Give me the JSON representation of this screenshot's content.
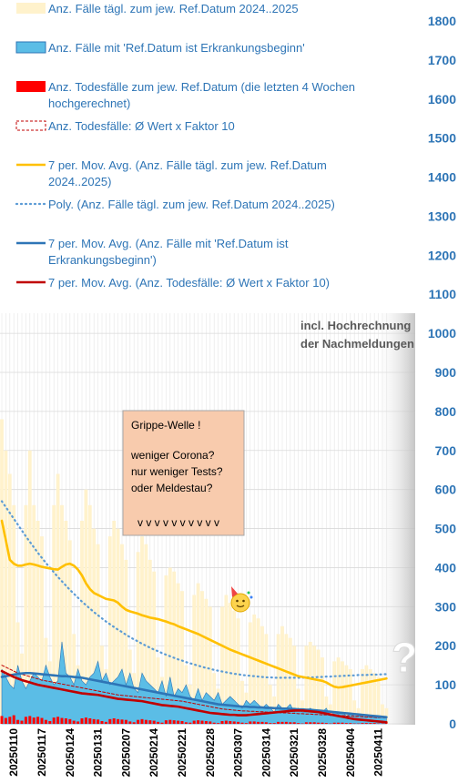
{
  "chart_data": {
    "type": "bar",
    "title": "",
    "xlabel": "",
    "ylabel": "",
    "ylim": [
      0,
      1850
    ],
    "y_ticks": [
      0,
      100,
      200,
      300,
      400,
      500,
      600,
      700,
      800,
      900,
      1000,
      1100,
      1200,
      1300,
      1400,
      1500,
      1600,
      1700,
      1800
    ],
    "x_tick_labels": [
      "20250110",
      "20250117",
      "20250124",
      "20250131",
      "20250207",
      "20250214",
      "20250221",
      "20250228",
      "20250307",
      "20250314",
      "20250321",
      "20250328",
      "20250404",
      "20250411"
    ],
    "legend_position": "top-left",
    "legend": [
      {
        "key": "cases_ref",
        "label": "Anz. Fälle tägl. zum jew. Ref.Datum 2024..2025",
        "style": "bar",
        "color": "#fff2cc"
      },
      {
        "key": "cases_onset",
        "label": "Anz. Fälle mit 'Ref.Datum ist Erkrankungsbeginn'",
        "style": "area",
        "color": "#5bbde6"
      },
      {
        "key": "deaths",
        "label": "Anz. Todesfälle zum jew. Ref.Datum (die letzten 4 Wochen hochgerechnet)",
        "style": "bar",
        "color": "#ff0000"
      },
      {
        "key": "deaths_x10",
        "label": "Anz. Todesfälle: Ø Wert x Faktor 10",
        "style": "dashed-box",
        "color": "#c00000"
      },
      {
        "key": "ma_cases_ref",
        "label": "7 per. Mov. Avg. (Anz. Fälle tägl. zum jew. Ref.Datum 2024..2025)",
        "style": "line",
        "color": "#ffc000"
      },
      {
        "key": "poly_cases_ref",
        "label": "Poly. (Anz. Fälle tägl. zum jew. Ref.Datum 2024..2025)",
        "style": "dotted",
        "color": "#5b9bd5"
      },
      {
        "key": "ma_cases_onset",
        "label": "7 per. Mov. Avg. (Anz. Fälle mit 'Ref.Datum ist Erkrankungsbeginn')",
        "style": "line",
        "color": "#2e75b6"
      },
      {
        "key": "ma_deaths_x10",
        "label": "7 per. Mov. Avg. (Anz. Todesfälle: Ø Wert x Faktor 10)",
        "style": "line",
        "color": "#c00000"
      }
    ],
    "annotations": {
      "projection_note": "incl. Hochrechnung der Nachmeldungen",
      "box_lines": [
        "Grippe-Welle !",
        "",
        "weniger Corona?",
        "nur weniger Tests?",
        "oder Meldestau?",
        "",
        "v v v v v v v v v v"
      ],
      "question_mark": "?"
    },
    "x": [
      "2025-01-07",
      "2025-01-08",
      "2025-01-09",
      "2025-01-10",
      "2025-01-11",
      "2025-01-12",
      "2025-01-13",
      "2025-01-14",
      "2025-01-15",
      "2025-01-16",
      "2025-01-17",
      "2025-01-18",
      "2025-01-19",
      "2025-01-20",
      "2025-01-21",
      "2025-01-22",
      "2025-01-23",
      "2025-01-24",
      "2025-01-25",
      "2025-01-26",
      "2025-01-27",
      "2025-01-28",
      "2025-01-29",
      "2025-01-30",
      "2025-01-31",
      "2025-02-01",
      "2025-02-02",
      "2025-02-03",
      "2025-02-04",
      "2025-02-05",
      "2025-02-06",
      "2025-02-07",
      "2025-02-08",
      "2025-02-09",
      "2025-02-10",
      "2025-02-11",
      "2025-02-12",
      "2025-02-13",
      "2025-02-14",
      "2025-02-15",
      "2025-02-16",
      "2025-02-17",
      "2025-02-18",
      "2025-02-19",
      "2025-02-20",
      "2025-02-21",
      "2025-02-22",
      "2025-02-23",
      "2025-02-24",
      "2025-02-25",
      "2025-02-26",
      "2025-02-27",
      "2025-02-28",
      "2025-03-01",
      "2025-03-02",
      "2025-03-03",
      "2025-03-04",
      "2025-03-05",
      "2025-03-06",
      "2025-03-07",
      "2025-03-08",
      "2025-03-09",
      "2025-03-10",
      "2025-03-11",
      "2025-03-12",
      "2025-03-13",
      "2025-03-14",
      "2025-03-15",
      "2025-03-16",
      "2025-03-17",
      "2025-03-18",
      "2025-03-19",
      "2025-03-20",
      "2025-03-21",
      "2025-03-22",
      "2025-03-23",
      "2025-03-24",
      "2025-03-25",
      "2025-03-26",
      "2025-03-27",
      "2025-03-28",
      "2025-03-29",
      "2025-03-30",
      "2025-03-31",
      "2025-04-01",
      "2025-04-02",
      "2025-04-03",
      "2025-04-04",
      "2025-04-05",
      "2025-04-06",
      "2025-04-07",
      "2025-04-08",
      "2025-04-09",
      "2025-04-10",
      "2025-04-11",
      "2025-04-12",
      "2025-04-13"
    ],
    "series": [
      {
        "key": "cases_ref",
        "values": [
          780,
          700,
          640,
          560,
          260,
          180,
          560,
          700,
          560,
          520,
          480,
          220,
          160,
          560,
          640,
          560,
          520,
          470,
          230,
          150,
          520,
          600,
          560,
          500,
          460,
          200,
          140,
          480,
          520,
          500,
          460,
          420,
          190,
          130,
          440,
          480,
          460,
          420,
          390,
          170,
          120,
          380,
          400,
          390,
          360,
          340,
          150,
          100,
          330,
          360,
          340,
          320,
          300,
          130,
          90,
          300,
          330,
          310,
          290,
          270,
          110,
          80,
          260,
          280,
          270,
          250,
          230,
          100,
          70,
          230,
          250,
          230,
          220,
          200,
          90,
          60,
          200,
          210,
          200,
          190,
          170,
          70,
          50,
          160,
          170,
          160,
          150,
          140,
          60,
          40,
          140,
          150,
          140,
          130,
          120,
          50,
          40
        ]
      },
      {
        "key": "cases_onset",
        "values": [
          140,
          120,
          100,
          90,
          150,
          110,
          90,
          110,
          130,
          120,
          110,
          150,
          120,
          100,
          110,
          210,
          130,
          120,
          100,
          140,
          110,
          100,
          120,
          130,
          160,
          110,
          130,
          100,
          110,
          120,
          140,
          100,
          130,
          90,
          80,
          130,
          110,
          100,
          90,
          80,
          110,
          70,
          120,
          70,
          90,
          80,
          100,
          70,
          60,
          90,
          60,
          80,
          70,
          60,
          80,
          50,
          60,
          70,
          60,
          50,
          40,
          60,
          50,
          60,
          50,
          40,
          50,
          40,
          30,
          50,
          40,
          40,
          50,
          30,
          40,
          30,
          30,
          40,
          30,
          30,
          30,
          40,
          20,
          30,
          25,
          30,
          20,
          25,
          20,
          20,
          20,
          15,
          20,
          15,
          15,
          20,
          15
        ]
      },
      {
        "key": "deaths",
        "values": [
          20,
          15,
          18,
          22,
          10,
          8,
          18,
          20,
          16,
          18,
          15,
          10,
          7,
          16,
          18,
          15,
          14,
          12,
          8,
          6,
          14,
          16,
          14,
          12,
          11,
          7,
          5,
          12,
          14,
          12,
          11,
          10,
          6,
          4,
          10,
          12,
          10,
          9,
          8,
          5,
          3,
          9,
          10,
          9,
          8,
          7,
          4,
          3,
          8,
          9,
          8,
          7,
          6,
          3,
          2,
          7,
          8,
          7,
          6,
          5,
          3,
          2,
          6,
          6,
          5,
          5,
          4,
          2,
          2,
          5,
          5,
          5,
          4,
          4,
          2,
          1,
          4,
          4,
          4,
          3,
          3,
          2,
          1,
          3,
          3,
          3,
          2,
          2,
          1,
          1,
          2,
          2,
          2,
          2,
          1,
          1,
          1
        ]
      },
      {
        "key": "deaths_x10",
        "values": [
          150,
          145,
          140,
          135,
          130,
          127,
          124,
          121,
          118,
          115,
          112,
          110,
          108,
          106,
          104,
          102,
          100,
          98,
          96,
          94,
          92,
          90,
          88,
          86,
          84,
          82,
          80,
          78,
          76,
          74,
          73,
          72,
          71,
          70,
          69,
          68,
          67,
          66,
          65,
          64,
          63,
          62,
          61,
          60,
          59,
          58,
          56,
          54,
          52,
          50,
          48,
          46,
          44,
          42,
          40,
          38,
          37,
          36,
          35,
          34,
          33,
          33,
          32,
          32,
          31,
          31,
          30,
          30,
          29,
          29,
          28,
          28,
          27,
          27,
          26,
          26,
          25,
          25,
          24,
          24,
          23,
          23,
          22,
          22,
          21,
          21,
          20,
          20,
          19,
          19,
          18,
          18,
          17,
          17,
          16,
          16,
          15
        ]
      },
      {
        "key": "ma_cases_ref",
        "values": [
          520,
          470,
          420,
          410,
          405,
          405,
          408,
          410,
          408,
          405,
          402,
          400,
          398,
          396,
          395,
          402,
          408,
          410,
          405,
          395,
          380,
          360,
          345,
          335,
          330,
          325,
          320,
          318,
          316,
          310,
          300,
          292,
          288,
          285,
          282,
          278,
          275,
          272,
          270,
          268,
          265,
          262,
          258,
          255,
          250,
          246,
          242,
          238,
          234,
          230,
          225,
          220,
          215,
          210,
          205,
          200,
          195,
          190,
          186,
          182,
          178,
          174,
          170,
          166,
          162,
          158,
          154,
          150,
          146,
          142,
          138,
          134,
          130,
          126,
          122,
          120,
          118,
          116,
          114,
          112,
          110,
          106,
          100,
          95,
          93,
          94,
          96,
          98,
          100,
          102,
          104,
          106,
          108,
          110,
          112,
          114,
          116
        ]
      },
      {
        "key": "poly_cases_ref",
        "values": [
          570,
          555,
          540,
          525,
          510,
          495,
          480,
          466,
          452,
          438,
          425,
          412,
          400,
          388,
          376,
          365,
          354,
          343,
          333,
          323,
          313,
          304,
          295,
          286,
          278,
          270,
          262,
          255,
          248,
          241,
          235,
          228,
          222,
          216,
          211,
          205,
          200,
          195,
          190,
          186,
          181,
          177,
          173,
          169,
          165,
          162,
          158,
          155,
          152,
          149,
          146,
          143,
          141,
          138,
          136,
          134,
          132,
          130,
          128,
          127,
          125,
          124,
          123,
          122,
          121,
          120,
          119,
          119,
          118,
          118,
          118,
          118,
          118,
          118,
          118,
          118,
          119,
          119,
          119,
          120,
          120,
          121,
          121,
          122,
          122,
          123,
          123,
          124,
          124,
          125,
          125,
          125,
          126,
          126,
          126,
          127,
          127
        ]
      },
      {
        "key": "ma_cases_onset",
        "values": [
          120,
          122,
          124,
          126,
          128,
          129,
          130,
          130,
          129,
          128,
          127,
          126,
          125,
          124,
          123,
          122,
          122,
          121,
          120,
          119,
          118,
          116,
          114,
          112,
          110,
          108,
          106,
          104,
          102,
          100,
          98,
          96,
          94,
          92,
          90,
          88,
          86,
          84,
          82,
          80,
          78,
          76,
          74,
          72,
          70,
          68,
          66,
          64,
          62,
          60,
          58,
          56,
          54,
          52,
          50,
          49,
          48,
          47,
          46,
          45,
          44,
          44,
          43,
          43,
          42,
          42,
          41,
          41,
          40,
          40,
          39,
          39,
          38,
          38,
          37,
          37,
          36,
          36,
          35,
          34,
          33,
          32,
          31,
          30,
          29,
          28,
          27,
          26,
          25,
          24,
          23,
          22,
          21,
          20,
          19,
          18,
          17
        ]
      },
      {
        "key": "ma_deaths_x10",
        "values": [
          135,
          130,
          125,
          120,
          116,
          112,
          109,
          106,
          103,
          100,
          98,
          96,
          94,
          92,
          90,
          88,
          86,
          84,
          82,
          80,
          78,
          77,
          76,
          75,
          74,
          72,
          70,
          68,
          66,
          64,
          63,
          62,
          61,
          60,
          59,
          58,
          56,
          54,
          52,
          50,
          48,
          47,
          46,
          45,
          44,
          42,
          40,
          38,
          36,
          34,
          32,
          30,
          28,
          27,
          26,
          25,
          24,
          23,
          23,
          22,
          22,
          22,
          23,
          24,
          25,
          26,
          27,
          28,
          29,
          30,
          31,
          32,
          33,
          34,
          34,
          34,
          33,
          32,
          31,
          30,
          28,
          26,
          24,
          22,
          20,
          18,
          16,
          14,
          12,
          11,
          10,
          9,
          8,
          7,
          6,
          5,
          4
        ]
      }
    ]
  }
}
